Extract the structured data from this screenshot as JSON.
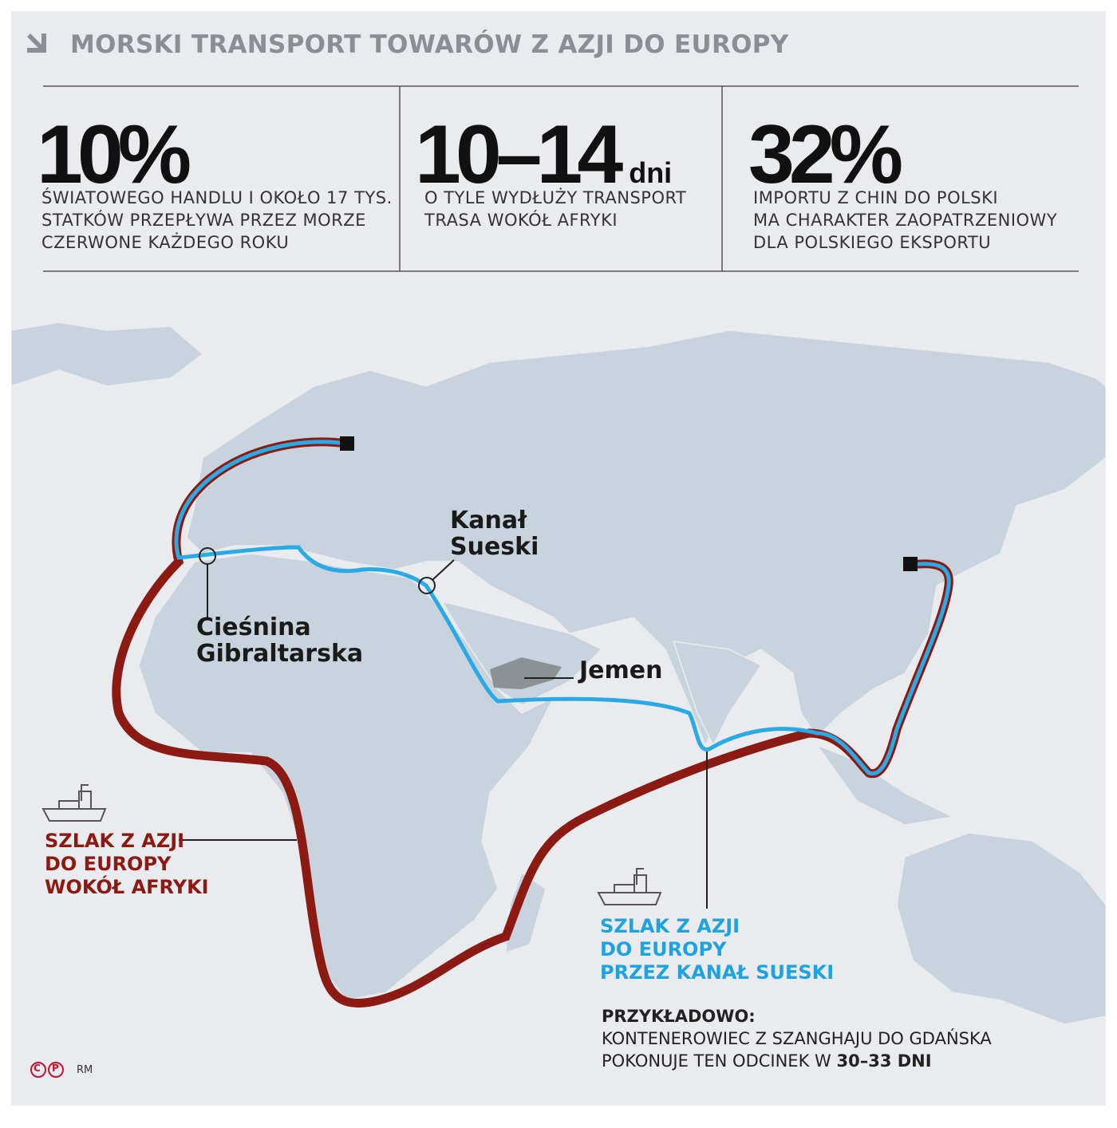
{
  "header": {
    "title": "MORSKI TRANSPORT TOWARÓW Z AZJI DO EUROPY"
  },
  "stats": [
    {
      "value": "10%",
      "lines": [
        "ŚWIATOWEGO HANDLU I OKOŁO 17 TYS.",
        "STATKÓW PRZEPŁYWA PRZEZ MORZE",
        "CZERWONE KAŻDEGO ROKU"
      ]
    },
    {
      "value": "10–14",
      "unit": "dni",
      "lines": [
        "O TYLE WYDŁUŻY TRANSPORT",
        "TRASA WOKÓŁ AFRYKI"
      ]
    },
    {
      "value": "32%",
      "lines": [
        "IMPORTU Z CHIN DO POLSKI",
        "MA CHARAKTER ZAOPATRZENIOWY",
        "DLA POLSKIEGO EKSPORTU"
      ]
    }
  ],
  "map": {
    "suez": [
      "Kanał",
      "Sueski"
    ],
    "gibraltar": [
      "Cieśnina",
      "Gibraltarska"
    ],
    "yemen": "Jemen"
  },
  "legend": {
    "africa": [
      "SZLAK Z AZJI",
      "DO EUROPY",
      "WOKÓŁ AFRYKI"
    ],
    "suez": [
      "SZLAK Z AZJI",
      "DO EUROPY",
      "PRZEZ KANAŁ SUESKI"
    ]
  },
  "note": {
    "heading": "PRZYKŁADOWO:",
    "line1": "KONTENEROWIEC Z SZANGHAJU DO GDAŃSKA",
    "line2": "POKONUJE TEN ODCINEK W",
    "bold": "30–33 DNI"
  },
  "footer": {
    "logo": [
      "C",
      "P"
    ],
    "credit": "RM"
  }
}
